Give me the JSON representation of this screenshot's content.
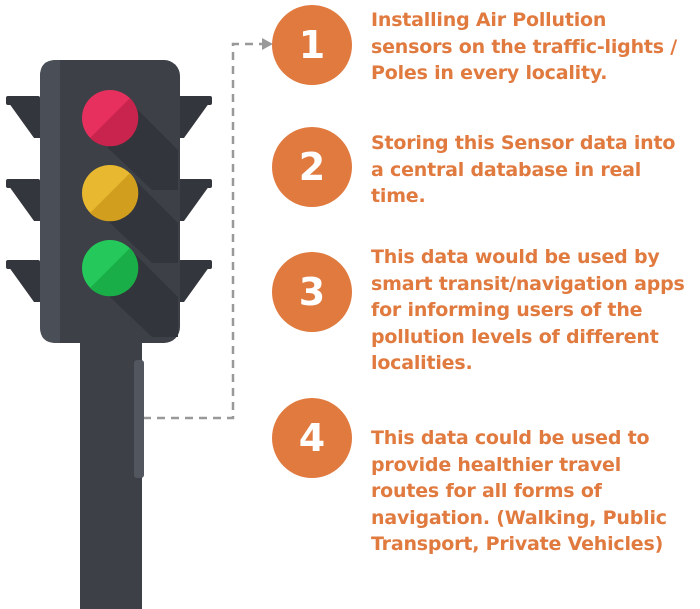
{
  "colors": {
    "accent": "#e07a3f",
    "pole": "#3d4047",
    "red_light": "#e8305f",
    "yellow_light": "#e8b830",
    "green_light": "#25c85a",
    "connector": "#999999"
  },
  "traffic_light": {
    "icon": "traffic-light-icon",
    "lights": [
      "red",
      "yellow",
      "green"
    ]
  },
  "steps": [
    {
      "number": "1",
      "text": "Installing Air Pollution sensors on the traffic-lights / Poles in every locality."
    },
    {
      "number": "2",
      "text": "Storing this Sensor data into a central database in real time."
    },
    {
      "number": "3",
      "text": "This data would be used by smart transit/navigation apps for informing users of the pollution levels of different localities."
    },
    {
      "number": "4",
      "text": "This data could be used to provide healthier travel routes for all forms of navigation. (Walking, Public Transport, Private Vehicles)"
    }
  ]
}
